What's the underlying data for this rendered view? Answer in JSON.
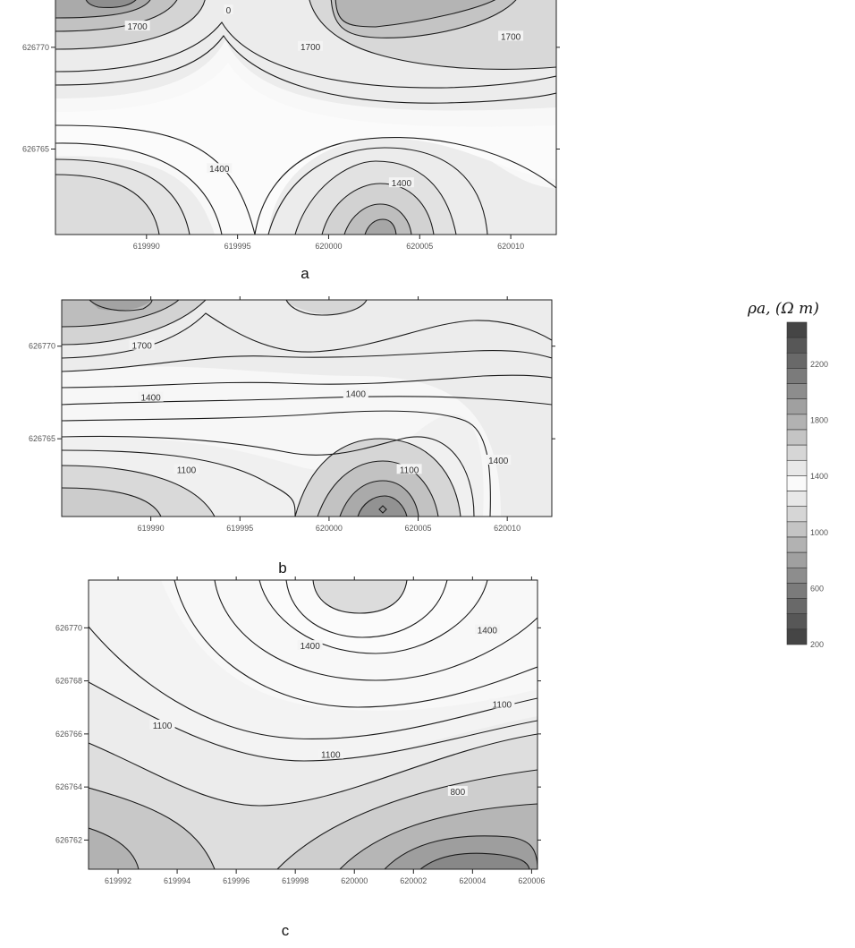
{
  "chart_data": [
    {
      "type": "contour",
      "panel_label": "a",
      "x_ticks": [
        "619990",
        "619995",
        "620000",
        "620005",
        "620010"
      ],
      "x_tick_values": [
        619990,
        619995,
        620000,
        620005,
        620010
      ],
      "y_ticks": [
        "626770",
        "626765"
      ],
      "y_tick_values": [
        626770,
        626765
      ],
      "xlim": [
        619985,
        620012.5
      ],
      "ylim": [
        626760.8,
        626772.5
      ],
      "contour_labels": [
        {
          "text": "1700",
          "x": 619989.5,
          "y": 626771.0
        },
        {
          "text": "1700",
          "x": 619999.0,
          "y": 626770.0
        },
        {
          "text": "1700",
          "x": 620010.0,
          "y": 626770.5
        },
        {
          "text": "1400",
          "x": 619994.0,
          "y": 626764.0
        },
        {
          "text": "1400",
          "x": 620004.0,
          "y": 626763.3
        },
        {
          "text": "0",
          "x": 619994.5,
          "y": 626771.8
        }
      ]
    },
    {
      "type": "contour",
      "panel_label": "b",
      "x_ticks": [
        "619990",
        "619995",
        "620000",
        "620005",
        "620010"
      ],
      "x_tick_values": [
        619990,
        619995,
        620000,
        620005,
        620010
      ],
      "y_ticks": [
        "626770",
        "626765"
      ],
      "y_tick_values": [
        626770,
        626765
      ],
      "xlim": [
        619985,
        620012.5
      ],
      "ylim": [
        626760.8,
        626772.5
      ],
      "contour_labels": [
        {
          "text": "1700",
          "x": 619989.5,
          "y": 626770.0
        },
        {
          "text": "1400",
          "x": 619990.0,
          "y": 626767.2
        },
        {
          "text": "1400",
          "x": 620001.5,
          "y": 626767.4
        },
        {
          "text": "1400",
          "x": 620009.5,
          "y": 626763.8
        },
        {
          "text": "1100",
          "x": 619992.0,
          "y": 626763.3
        },
        {
          "text": "1100",
          "x": 620004.5,
          "y": 626763.3
        }
      ]
    },
    {
      "type": "contour",
      "panel_label": "c",
      "x_ticks": [
        "619992",
        "619994",
        "619996",
        "619998",
        "620000",
        "620002",
        "620004",
        "620006"
      ],
      "x_tick_values": [
        619992,
        619994,
        619996,
        619998,
        620000,
        620002,
        620004,
        620006
      ],
      "y_ticks": [
        "626770",
        "626768",
        "626766",
        "626764",
        "626762"
      ],
      "y_tick_values": [
        626770,
        626768,
        626766,
        626764,
        626762
      ],
      "xlim": [
        619991,
        620006.2
      ],
      "ylim": [
        626760.9,
        626771.8
      ],
      "contour_labels": [
        {
          "text": "1400",
          "x": 620004.5,
          "y": 626769.9
        },
        {
          "text": "1400",
          "x": 619998.5,
          "y": 626769.3
        },
        {
          "text": "1100",
          "x": 620005.0,
          "y": 626767.1
        },
        {
          "text": "1100",
          "x": 619993.5,
          "y": 626766.3
        },
        {
          "text": "1100",
          "x": 619999.2,
          "y": 626765.2
        },
        {
          "text": "800",
          "x": 620003.5,
          "y": 626763.8
        }
      ]
    }
  ],
  "legend": {
    "title": "ρa, (Ω m)",
    "tick_labels": [
      "2200",
      "1800",
      "1400",
      "1000",
      "600",
      "200"
    ],
    "tick_values": [
      2200,
      1800,
      1400,
      1000,
      600,
      200
    ],
    "range": [
      200,
      2500
    ],
    "bins": 21
  },
  "colors": {
    "plot_background": "#ececec",
    "contour_line": "#1c1c1c",
    "dark_fill": "#606060",
    "light_fill": "#f7f7f7"
  }
}
